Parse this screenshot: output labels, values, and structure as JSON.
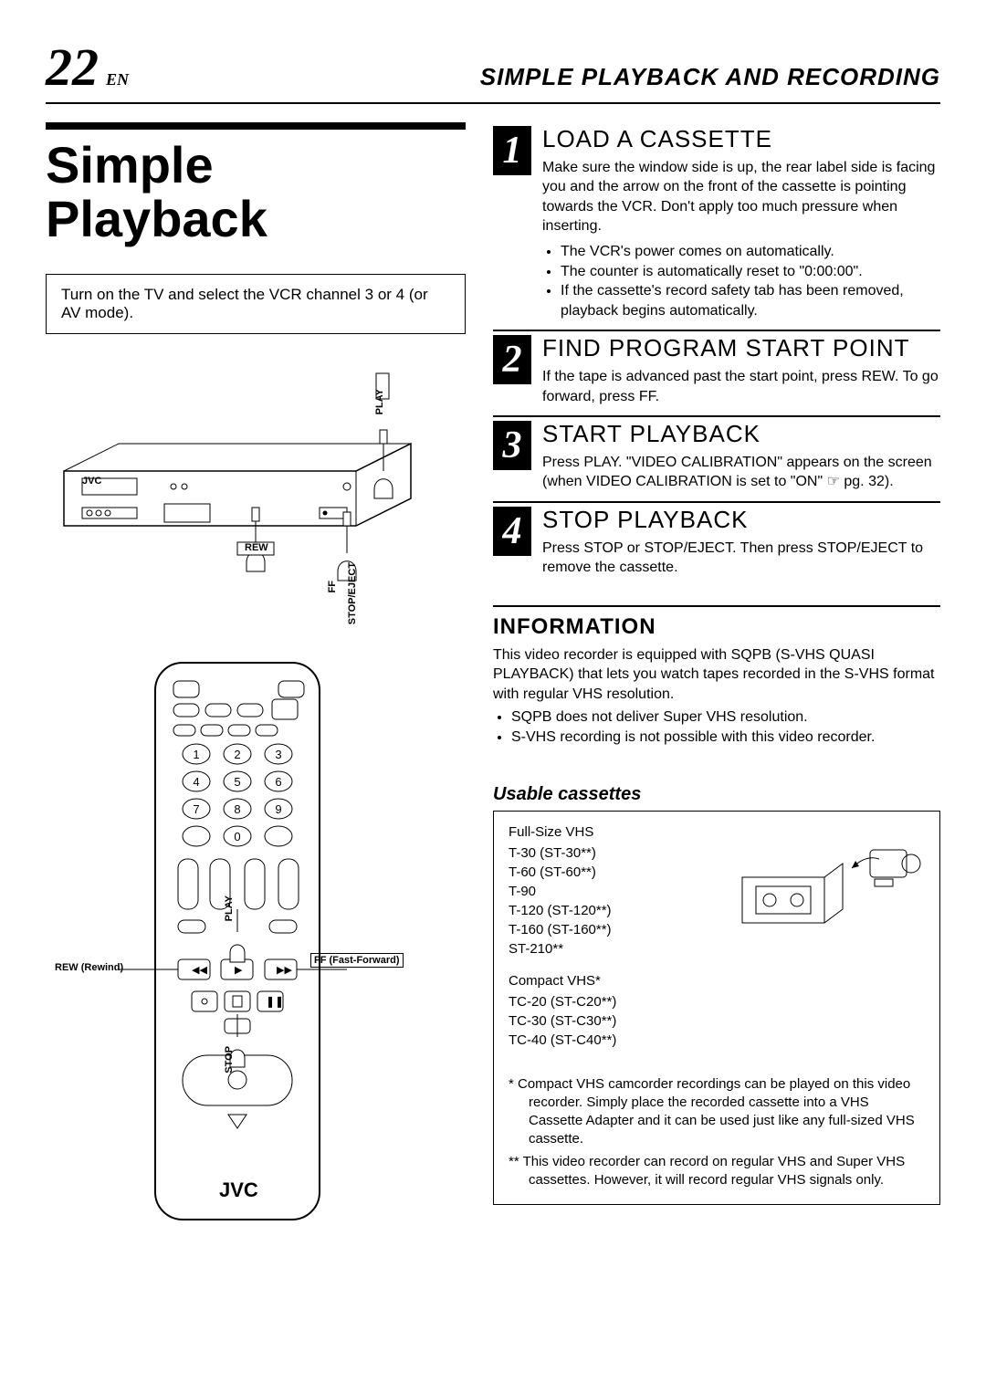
{
  "page": {
    "number": "22",
    "suffix": "EN",
    "header_title": "SIMPLE PLAYBACK AND RECORDING"
  },
  "section": {
    "title_line1": "Simple",
    "title_line2": "Playback"
  },
  "intro": "Turn on the TV and select the VCR channel 3 or 4 (or AV mode).",
  "vcr_labels": {
    "play": "PLAY",
    "rew": "REW",
    "ff": "FF",
    "stop_eject": "STOP/EJECT",
    "brand": "JVC"
  },
  "remote_labels": {
    "rew": "REW (Rewind)",
    "ff": "FF (Fast-Forward)",
    "play": "PLAY",
    "stop": "STOP",
    "brand": "JVC",
    "keys": [
      "1",
      "2",
      "3",
      "4",
      "5",
      "6",
      "7",
      "8",
      "9",
      "0"
    ]
  },
  "steps": [
    {
      "num": "1",
      "title": "LOAD A CASSETTE",
      "text": "Make sure the window side is up, the rear label side is facing you and the arrow on the front of the cassette is pointing towards the VCR. Don't apply too much pressure when inserting.",
      "bullets": [
        "The VCR's power comes on automatically.",
        "The counter is automatically reset to \"0:00:00\".",
        "If the cassette's record safety tab has been removed, playback begins automatically."
      ]
    },
    {
      "num": "2",
      "title": "FIND PROGRAM START POINT",
      "text": "If the tape is advanced past the start point, press REW. To go forward, press FF.",
      "bullets": []
    },
    {
      "num": "3",
      "title": "START PLAYBACK",
      "text": "Press PLAY. \"VIDEO CALIBRATION\" appears on the screen (when VIDEO CALIBRATION is set to \"ON\" ☞ pg. 32).",
      "bullets": []
    },
    {
      "num": "4",
      "title": "STOP PLAYBACK",
      "text": "Press STOP or STOP/EJECT. Then press STOP/EJECT to remove the cassette.",
      "bullets": []
    }
  ],
  "info": {
    "title": "INFORMATION",
    "text": "This video recorder is equipped with SQPB (S-VHS QUASI PLAYBACK) that lets you watch tapes recorded in the S-VHS format with regular VHS resolution.",
    "bullets": [
      "SQPB does not deliver Super VHS resolution.",
      "S-VHS recording is not possible with this video recorder."
    ]
  },
  "cassettes": {
    "title": "Usable cassettes",
    "full_heading": "Full-Size VHS",
    "full_list": [
      "T-30 (ST-30**)",
      "T-60 (ST-60**)",
      "T-90",
      "T-120 (ST-120**)",
      "T-160 (ST-160**)",
      "ST-210**"
    ],
    "compact_heading": "Compact VHS*",
    "compact_list": [
      "TC-20 (ST-C20**)",
      "TC-30 (ST-C30**)",
      "TC-40 (ST-C40**)"
    ],
    "footnote1": "* Compact VHS camcorder recordings can be played on this video recorder. Simply place the recorded cassette into a VHS Cassette Adapter and it can be used just like any full-sized VHS cassette.",
    "footnote2": "** This video recorder can record on regular VHS and Super VHS cassettes. However, it will record regular VHS signals only."
  },
  "colors": {
    "text": "#000000",
    "bg": "#ffffff",
    "rule": "#000000"
  }
}
